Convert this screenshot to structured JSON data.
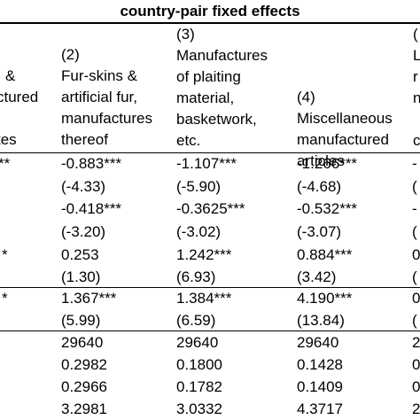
{
  "title": "country-pair fixed effects",
  "headers": {
    "col1": [
      "&",
      "ctured",
      "tes"
    ],
    "col2": [
      "(2)",
      "Fur-skins &",
      "artificial fur,",
      "manufactures",
      "thereof"
    ],
    "col3": [
      "(3)",
      "Manufactures",
      "of plaiting",
      "material,",
      "basketwork,",
      "etc."
    ],
    "col4": [
      "(4)",
      "Miscellaneous",
      "manufactured",
      "articles"
    ],
    "col5": [
      "(",
      "L",
      "r",
      "n",
      "c"
    ]
  },
  "rows": [
    {
      "c1": "**",
      "c2": "-0.883***",
      "c3": "-1.107***",
      "c4": "-1.266***",
      "c5": "-"
    },
    {
      "c1": "",
      "c2": "(-4.33)",
      "c3": "(-5.90)",
      "c4": "(-4.68)",
      "c5": "("
    },
    {
      "c1": "",
      "c2": "-0.418***",
      "c3": "-0.3625***",
      "c4": "-0.532***",
      "c5": "-"
    },
    {
      "c1": "",
      "c2": "(-3.20)",
      "c3": "(-3.02)",
      "c4": "(-3.07)",
      "c5": "("
    },
    {
      "c1": "*",
      "c2": "0.253",
      "c3": "1.242***",
      "c4": "0.884***",
      "c5": "0"
    },
    {
      "c1": "",
      "c2": "(1.30)",
      "c3": "(6.93)",
      "c4": "(3.42)",
      "c5": "("
    },
    {
      "c1": "*",
      "c2": "1.367***",
      "c3": "1.384***",
      "c4": "4.190***",
      "c5": "0"
    },
    {
      "c1": "",
      "c2": "(5.99)",
      "c3": "(6.59)",
      "c4": "(13.84)",
      "c5": "("
    },
    {
      "c1": "",
      "c2": "29640",
      "c3": "29640",
      "c4": "29640",
      "c5": "2"
    },
    {
      "c1": "",
      "c2": "0.2982",
      "c3": "0.1800",
      "c4": "0.1428",
      "c5": "0"
    },
    {
      "c1": "",
      "c2": "0.2966",
      "c3": "0.1782",
      "c4": "0.1409",
      "c5": "0"
    },
    {
      "c1": "",
      "c2": "3.2981",
      "c3": "3.0332",
      "c4": "4.3717",
      "c5": "2"
    }
  ]
}
